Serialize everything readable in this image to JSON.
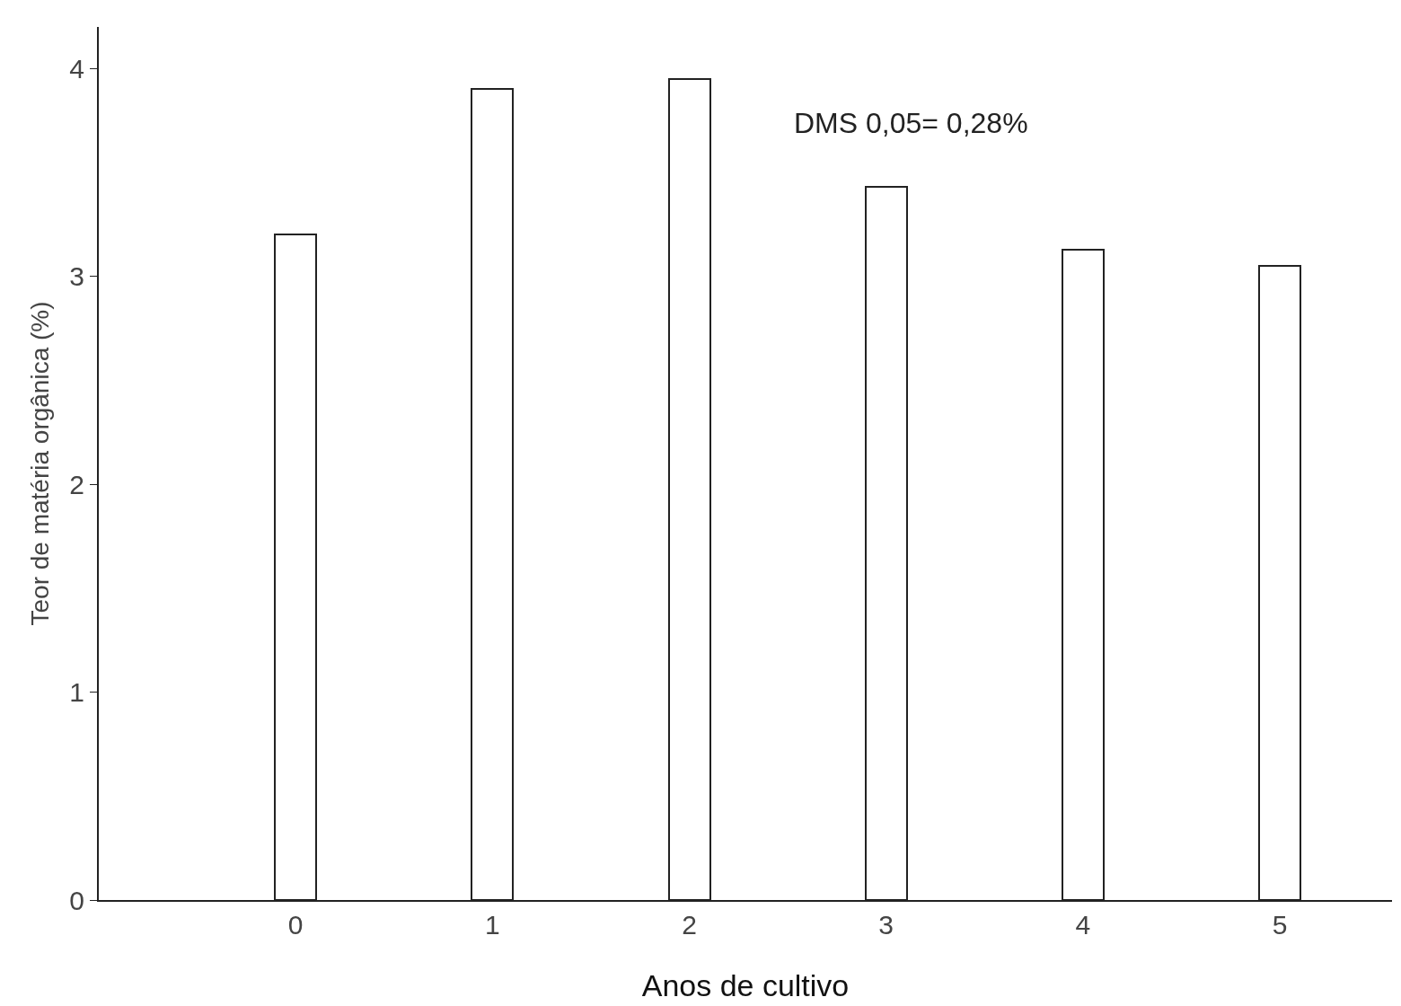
{
  "chart_data": {
    "type": "bar",
    "xlabel": "Anos de cultivo",
    "ylabel": "Teor de matéria orgânica (%)",
    "annotations": [
      "DMS 0,05= 0,28%"
    ],
    "categories": [
      "0",
      "1",
      "2",
      "3",
      "4",
      "5"
    ],
    "values": [
      3.2,
      3.9,
      3.95,
      3.43,
      3.13,
      3.05
    ],
    "color": "#ffffff",
    "ylim": [
      0,
      4.2
    ],
    "yticks": [
      0,
      1,
      2,
      3,
      4
    ]
  }
}
